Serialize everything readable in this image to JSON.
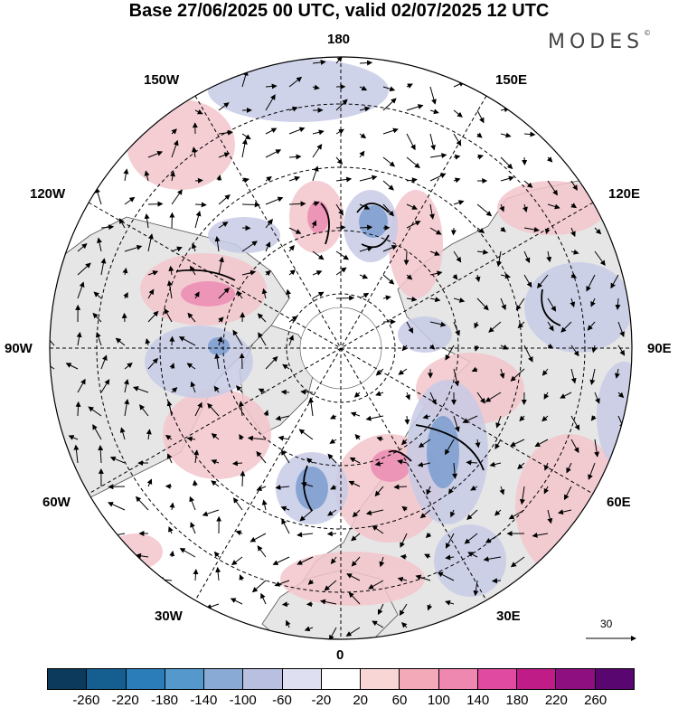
{
  "title": "Base 27/06/2025 00 UTC, valid 02/07/2025 12 UTC",
  "logo": "MODES",
  "logo_mark": "©",
  "longitude_labels": {
    "top": "180",
    "bottom": "0",
    "left": "90W",
    "right": "90E",
    "nw_upper": "150W",
    "nw_lower": "120W",
    "ne_upper": "150E",
    "ne_lower": "120E",
    "sw_upper": "60W",
    "sw_lower": "30W",
    "se_upper": "60E",
    "se_lower": "30E"
  },
  "reference_vector": "30",
  "colorbar": {
    "colors": [
      "#0c3a5c",
      "#155f90",
      "#2a7db8",
      "#5599cc",
      "#8aaad6",
      "#b8bfe0",
      "#dedff0",
      "#ffffff",
      "#f9d6d6",
      "#f3a9b8",
      "#ee88b0",
      "#e04aa0",
      "#c01c88",
      "#8e0f80",
      "#5a0670"
    ],
    "ticks": [
      "-260",
      "-220",
      "-180",
      "-140",
      "-100",
      "-60",
      "-20",
      "20",
      "60",
      "100",
      "140",
      "180",
      "220",
      "260"
    ]
  },
  "colors": {
    "land": "#e8e8e8",
    "ocean": "#ffffff",
    "positive": "#f2c4c8",
    "negative": "#c4c8e4"
  }
}
